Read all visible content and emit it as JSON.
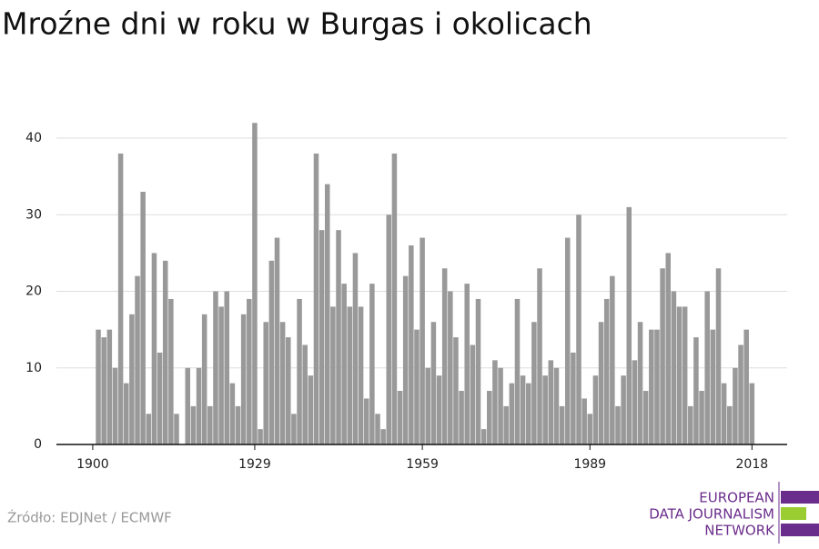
{
  "chart_data": {
    "type": "bar",
    "title": "Mroźne dni w roku w Burgas i okolicach",
    "source": "Źródło: EDJNet / ECMWF",
    "logo": [
      "EUROPEAN",
      "DATA JOURNALISM",
      "NETWORK"
    ],
    "color": "#999999",
    "grid": true,
    "x": [
      1901,
      1902,
      1903,
      1904,
      1905,
      1906,
      1907,
      1908,
      1909,
      1910,
      1911,
      1912,
      1913,
      1914,
      1915,
      1916,
      1917,
      1918,
      1919,
      1920,
      1921,
      1922,
      1923,
      1924,
      1925,
      1926,
      1927,
      1928,
      1929,
      1930,
      1931,
      1932,
      1933,
      1934,
      1935,
      1936,
      1937,
      1938,
      1939,
      1940,
      1941,
      1942,
      1943,
      1944,
      1945,
      1946,
      1947,
      1948,
      1949,
      1950,
      1951,
      1952,
      1953,
      1954,
      1955,
      1956,
      1957,
      1958,
      1959,
      1960,
      1961,
      1962,
      1963,
      1964,
      1965,
      1966,
      1967,
      1968,
      1969,
      1970,
      1971,
      1972,
      1973,
      1974,
      1975,
      1976,
      1977,
      1978,
      1979,
      1980,
      1981,
      1982,
      1983,
      1984,
      1985,
      1986,
      1987,
      1988,
      1989,
      1990,
      1991,
      1992,
      1993,
      1994,
      1995,
      1996,
      1997,
      1998,
      1999,
      2000,
      2001,
      2002,
      2003,
      2004,
      2005,
      2006,
      2007,
      2008,
      2009,
      2010,
      2011,
      2012,
      2013,
      2014,
      2015,
      2016,
      2017,
      2018
    ],
    "values": [
      15,
      14,
      15,
      10,
      38,
      8,
      17,
      22,
      33,
      4,
      25,
      12,
      24,
      19,
      4,
      0,
      10,
      5,
      10,
      17,
      5,
      20,
      18,
      20,
      8,
      5,
      17,
      19,
      42,
      2,
      16,
      24,
      27,
      16,
      14,
      4,
      19,
      13,
      9,
      38,
      28,
      34,
      18,
      28,
      21,
      18,
      25,
      18,
      6,
      21,
      4,
      2,
      30,
      38,
      7,
      22,
      26,
      15,
      27,
      10,
      16,
      9,
      23,
      20,
      14,
      7,
      21,
      13,
      19,
      2,
      7,
      11,
      10,
      5,
      8,
      19,
      9,
      8,
      16,
      23,
      9,
      11,
      10,
      5,
      27,
      12,
      30,
      6,
      4,
      9,
      16,
      19,
      22,
      5,
      9,
      31,
      11,
      16,
      7,
      15,
      15,
      23,
      25,
      20,
      18,
      18,
      5,
      14,
      7,
      20,
      15,
      23,
      8,
      5,
      10,
      13,
      15,
      8
    ],
    "xlim": [
      1893.5,
      2024.3
    ],
    "xticks": [
      1900,
      1929,
      1959,
      1989,
      2018
    ],
    "ylim": [
      0,
      42.5
    ],
    "yticks": [
      0,
      10,
      20,
      30,
      40
    ]
  }
}
